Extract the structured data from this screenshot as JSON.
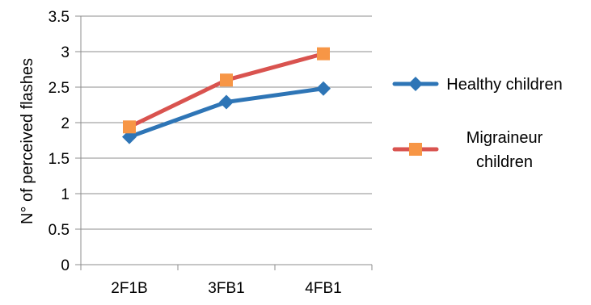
{
  "chart_data": {
    "type": "line",
    "title": "",
    "xlabel": "",
    "ylabel": "N° of perceived flashes",
    "categories": [
      "2F1B",
      "3FB1",
      "4FB1"
    ],
    "ylim": [
      0,
      3.5
    ],
    "yticks": [
      "0",
      "0.5",
      "1",
      "1.5",
      "2",
      "2.5",
      "3",
      "3.5"
    ],
    "grid": true,
    "legend_position": "right",
    "series": [
      {
        "name": "Healthy children",
        "legend_lines": [
          "Healthy children"
        ],
        "values": [
          1.8,
          2.29,
          2.48
        ],
        "color": "#2E75B6",
        "marker": "diamond",
        "marker_color": "#2E75B6"
      },
      {
        "name": "Migraineur children",
        "legend_lines": [
          "Migraineur",
          "children"
        ],
        "values": [
          1.94,
          2.6,
          2.97
        ],
        "color": "#D9534F",
        "marker": "square",
        "marker_color": "#F79646"
      }
    ]
  }
}
